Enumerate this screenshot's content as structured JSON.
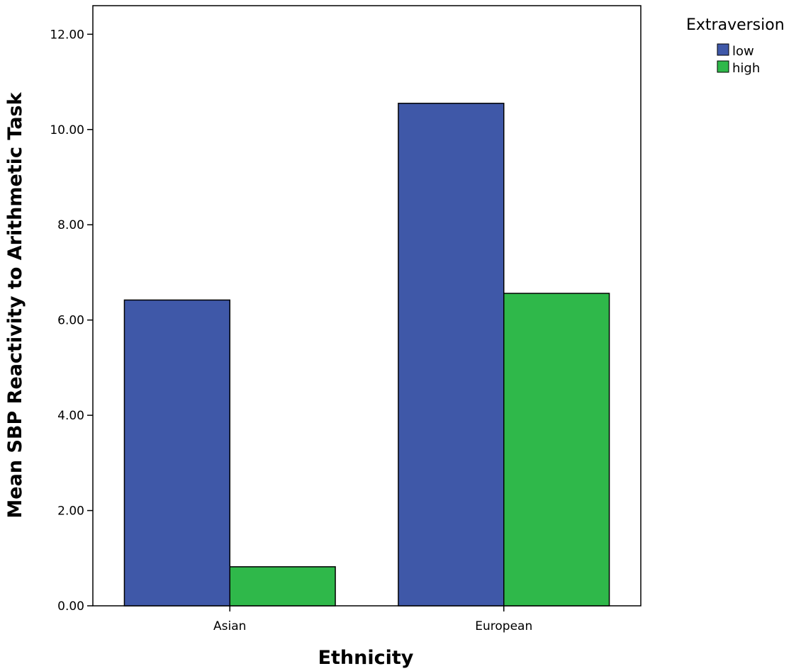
{
  "chart_data": {
    "type": "bar",
    "categories": [
      "Asian",
      "European"
    ],
    "series": [
      {
        "name": "low",
        "values": [
          6.42,
          10.55
        ],
        "color": "#3f58a8"
      },
      {
        "name": "high",
        "values": [
          0.82,
          6.56
        ],
        "color": "#2fb84a"
      }
    ],
    "xlabel": "Ethnicity",
    "ylabel": "Mean SBP Reactivity to Arithmetic Task",
    "ylim": [
      0,
      12.6
    ],
    "yticks": [
      0,
      2,
      4,
      6,
      8,
      10,
      12
    ],
    "ytick_labels": [
      "0.00",
      "2.00",
      "4.00",
      "6.00",
      "8.00",
      "10.00",
      "12.00"
    ],
    "grid": false,
    "legend": {
      "title": "Extraversion",
      "placement": "top-right outside"
    }
  }
}
